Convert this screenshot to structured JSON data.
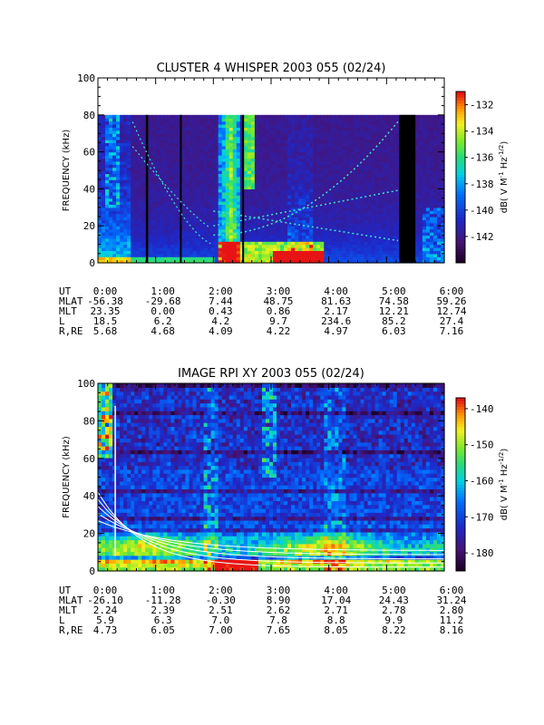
{
  "chart_data": [
    {
      "type": "heatmap",
      "title": "CLUSTER 4 WHISPER 2003 055 (02/24)",
      "ylabel": "FREQUENCY (kHz)",
      "ylim": [
        0,
        100
      ],
      "y_ticks": [
        0,
        20,
        40,
        60,
        80,
        100
      ],
      "data_ceiling_khz": 80,
      "x_ticks": [
        "0:00",
        "1:00",
        "2:00",
        "3:00",
        "4:00",
        "5:00",
        "6:00"
      ],
      "xlim_hours": [
        0,
        6
      ],
      "colorbar": {
        "label": "dB( V M⁻¹ Hz⁻¹ᐟ²)",
        "label_parts": [
          "dB( V M",
          "-1",
          " Hz",
          "-1/2",
          ")"
        ],
        "ticks": [
          -132,
          -134,
          -136,
          -138,
          -140,
          -142
        ],
        "range": [
          -144,
          -131
        ]
      },
      "ephemeris": {
        "rows": [
          {
            "name": "UT",
            "values": [
              "0:00",
              "1:00",
              "2:00",
              "3:00",
              "4:00",
              "5:00",
              "6:00"
            ]
          },
          {
            "name": "MLAT",
            "values": [
              "-56.38",
              "-29.68",
              "7.44",
              "48.75",
              "81.63",
              "74.58",
              "59.26"
            ]
          },
          {
            "name": "MLT",
            "values": [
              "23.35",
              "0.00",
              "0.43",
              "0.86",
              "2.17",
              "12.21",
              "12.74"
            ]
          },
          {
            "name": "L",
            "values": [
              "18.5",
              "6.2",
              "4.2",
              "9.7",
              "234.6",
              "85.2",
              "27.4"
            ]
          },
          {
            "name": "R,RE",
            "values": [
              "5.68",
              "4.68",
              "4.09",
              "4.22",
              "4.97",
              "6.03",
              "7.16"
            ]
          }
        ]
      },
      "features": {
        "data_gaps_hours": [
          [
            0.83,
            0.87
          ],
          [
            1.42,
            1.45
          ],
          [
            2.5,
            2.53
          ],
          [
            5.22,
            5.5
          ]
        ],
        "bright_bursts_hours": [
          [
            0.1,
            0.35
          ],
          [
            2.12,
            2.35
          ],
          [
            2.5,
            2.6
          ]
        ],
        "resonance_lines": "diagonal plasma-frequency traces"
      }
    },
    {
      "type": "heatmap",
      "title": "IMAGE RPI XY 2003 055 (02/24)",
      "ylabel": "FREQUENCY (kHz)",
      "ylim": [
        0,
        100
      ],
      "y_ticks": [
        0,
        20,
        40,
        60,
        80,
        100
      ],
      "x_ticks": [
        "0:00",
        "1:00",
        "2:00",
        "3:00",
        "4:00",
        "5:00",
        "6:00"
      ],
      "xlim_hours": [
        0,
        6
      ],
      "colorbar": {
        "label_parts": [
          "dB( V M",
          "-1",
          " Hz",
          "-1/2",
          ")"
        ],
        "ticks": [
          -140,
          -150,
          -160,
          -170,
          -180
        ],
        "range": [
          -185,
          -137
        ]
      },
      "ephemeris": {
        "rows": [
          {
            "name": "UT",
            "values": [
              "0:00",
              "1:00",
              "2:00",
              "3:00",
              "4:00",
              "5:00",
              "6:00"
            ]
          },
          {
            "name": "MLAT",
            "values": [
              "-26.10",
              "-11.28",
              "-0.30",
              "8.90",
              "17.04",
              "24.43",
              "31.24"
            ]
          },
          {
            "name": "MLT",
            "values": [
              "2.24",
              "2.39",
              "2.51",
              "2.62",
              "2.71",
              "2.78",
              "2.80"
            ]
          },
          {
            "name": "L",
            "values": [
              "5.9",
              "6.3",
              "7.0",
              "7.8",
              "8.8",
              "9.9",
              "11.2"
            ]
          },
          {
            "name": "R,RE",
            "values": [
              "4.73",
              "6.05",
              "7.00",
              "7.65",
              "8.05",
              "8.22",
              "8.16"
            ]
          }
        ]
      },
      "features": {
        "overlay_curves_count": 5,
        "bright_bursts_hours": [
          [
            0.0,
            0.25
          ],
          [
            1.9,
            2.1
          ],
          [
            2.85,
            3.05
          ]
        ]
      }
    }
  ]
}
